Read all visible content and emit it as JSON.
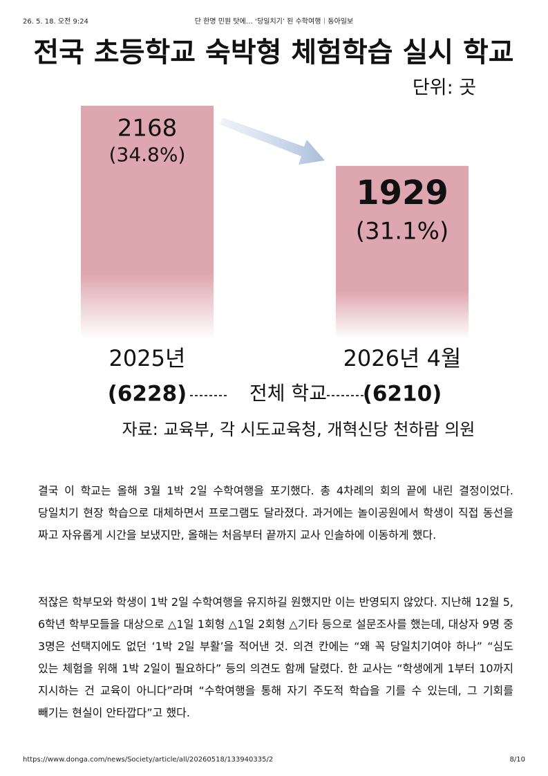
{
  "header": {
    "date": "26. 5. 18. 오전 9:24",
    "title": "단 한명 민원 탓에… ‘당일치기’ 된 수학여행｜동아일보"
  },
  "chart_data": {
    "type": "bar",
    "title": "전국 초등학교 숙박형 체험학습 실시 학교",
    "unit": "단위: 곳",
    "categories": [
      "2025년",
      "2026년 4월"
    ],
    "values": [
      2168,
      1929
    ],
    "shares": [
      {
        "value": 34.8,
        "label": "(34.8%)"
      },
      {
        "value": 31.1,
        "label": "(31.1%)"
      }
    ],
    "totals": [
      {
        "value": 6228,
        "label": "(6228)"
      },
      {
        "value": 6210,
        "label": "(6210)"
      }
    ],
    "totals_label": "전체 학교",
    "source": "자료: 교육부, 각 시도교육청, 개혁신당 천하람 의원",
    "color": "#dea6ae"
  },
  "article": {
    "paragraphs": [
      "결국 이 학교는 올해 3월 1박 2일 수학여행을 포기했다. 총 4차례의 회의 끝에 내린 결정이었다. 당일치기 현장 학습으로 대체하면서 프로그램도 달라졌다. 과거에는 놀이공원에서 학생이 직접 동선을 짜고 자유롭게 시간을 보냈지만, 올해는 처음부터 끝까지 교사 인솔하에 이동하게 했다.",
      "적잖은 학부모와 학생이 1박 2일 수학여행을 유지하길 원했지만 이는 반영되지 않았다. 지난해 12월 5, 6학년 학부모들을 대상으로 △1일 1회형 △1일 2회형 △기타 등으로 설문조사를 했는데, 대상자 9명 중 3명은 선택지에도 없던 ‘1박 2일 부활’을 적어낸 것. 의견 칸에는 “왜 꼭 당일치기여야 하나” “심도 있는 체험을 위해 1박 2일이 필요하다” 등의 의견도 함께 달렸다. 한 교사는 “학생에게 1부터 10까지 지시하는 건 교육이 아니다”라며 “수학여행을 통해 자기 주도적 학습을 기를 수 있는데, 그 기회를 빼기는 현실이 안타깝다”고 했다."
    ]
  },
  "footer": {
    "url": "https://www.donga.com/news/Society/article/all/20260518/133940335/2",
    "page": "8/10"
  }
}
